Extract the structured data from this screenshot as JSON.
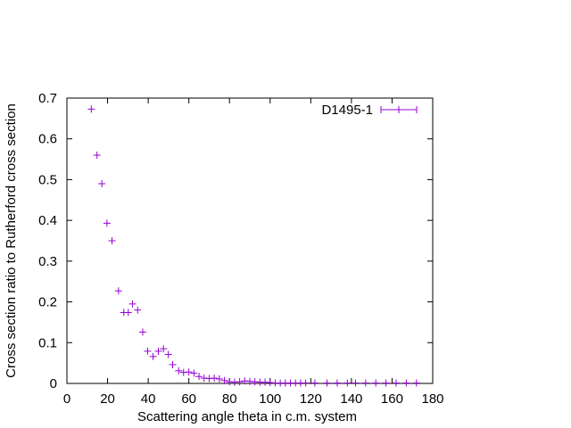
{
  "chart_data": {
    "type": "scatter",
    "title": "",
    "xlabel": "Scattering angle theta in c.m. system",
    "ylabel": "Cross section ratio to Rutherford cross section",
    "xlim": [
      0,
      180
    ],
    "ylim": [
      0,
      0.7
    ],
    "xticks": [
      "0",
      "20",
      "40",
      "60",
      "80",
      "100",
      "120",
      "140",
      "160",
      "180"
    ],
    "yticks": [
      "0",
      "0.1",
      "0.2",
      "0.3",
      "0.4",
      "0.5",
      "0.6",
      "0.7"
    ],
    "grid": false,
    "legend_position": "top-right",
    "series": [
      {
        "name": "D1495-1",
        "color": "#9400d3",
        "marker": "plus",
        "x": [
          12,
          14.8,
          17.2,
          19.7,
          22.2,
          25.4,
          28,
          30.2,
          32.3,
          34.8,
          37.3,
          39.7,
          42.4,
          45,
          47.5,
          49.9,
          52,
          55,
          57.4,
          60,
          62.5,
          65,
          67.5,
          70,
          72.5,
          75,
          77.5,
          80,
          82.5,
          85,
          87.5,
          90,
          92.5,
          95,
          97.5,
          100,
          102.5,
          105,
          107.5,
          110,
          112.5,
          115,
          117.5,
          122,
          128,
          133,
          138,
          142,
          147,
          152,
          157,
          162,
          167,
          172
        ],
        "y": [
          0.673,
          0.56,
          0.49,
          0.393,
          0.35,
          0.227,
          0.174,
          0.174,
          0.195,
          0.18,
          0.126,
          0.079,
          0.066,
          0.079,
          0.085,
          0.071,
          0.046,
          0.031,
          0.027,
          0.028,
          0.025,
          0.017,
          0.013,
          0.012,
          0.013,
          0.011,
          0.007,
          0.004,
          0.003,
          0.004,
          0.006,
          0.005,
          0.004,
          0.003,
          0.003,
          0.002,
          0.001,
          0.001,
          0.001,
          0.001,
          0.001,
          0.001,
          0.001,
          0.001,
          0.001,
          0.001,
          0.001,
          0.001,
          0.001,
          0.001,
          0.001,
          0.001,
          0.001,
          0.001
        ]
      }
    ]
  }
}
